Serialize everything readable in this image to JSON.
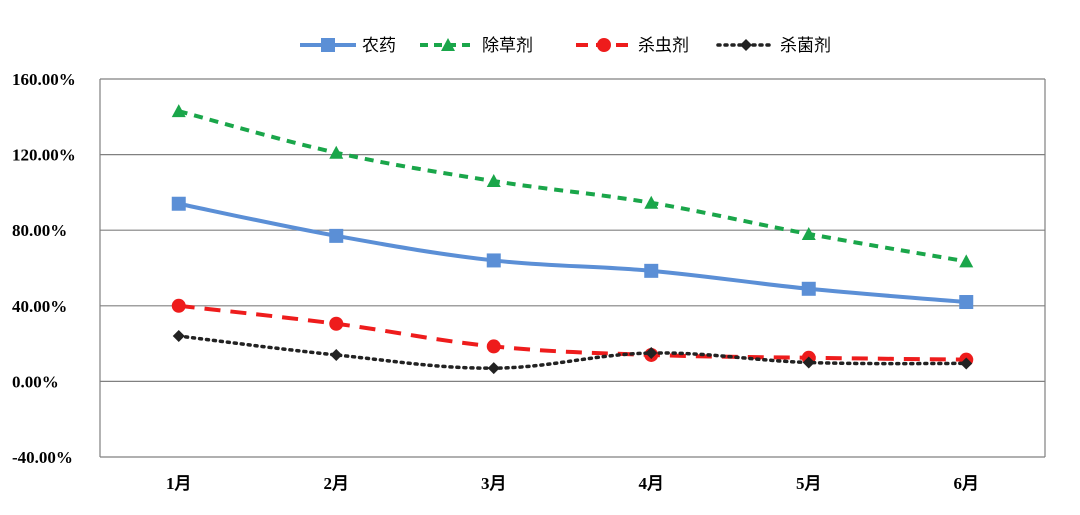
{
  "chart_data": {
    "type": "line",
    "title": "",
    "xlabel": "",
    "ylabel": "",
    "categories": [
      "1月",
      "2月",
      "3月",
      "4月",
      "5月",
      "6月"
    ],
    "ylim": [
      -40,
      160
    ],
    "yticks": [
      -40,
      0,
      40,
      80,
      120,
      160
    ],
    "ytick_labels": [
      "-40.00%",
      "0.00%",
      "40.00%",
      "80.00%",
      "120.00%",
      "160.00%"
    ],
    "grid": true,
    "legend_position": "top",
    "series": [
      {
        "name": "农药",
        "values": [
          94,
          77,
          64,
          58.5,
          49,
          42
        ],
        "color": "#5B8FD6",
        "dash": "solid",
        "marker": "square"
      },
      {
        "name": "除草剂",
        "values": [
          143,
          121,
          106,
          94.5,
          78,
          63.5
        ],
        "color": "#1AA64A",
        "dash": "dashed",
        "marker": "triangle"
      },
      {
        "name": "杀虫剂",
        "values": [
          40,
          30.5,
          18.5,
          14,
          12.5,
          11.5
        ],
        "color": "#EE1C1C",
        "dash": "longdash",
        "marker": "circle"
      },
      {
        "name": "杀菌剂",
        "values": [
          24,
          14,
          7,
          15,
          10,
          9.5
        ],
        "color": "#222222",
        "dash": "dotted",
        "marker": "diamond"
      }
    ]
  }
}
